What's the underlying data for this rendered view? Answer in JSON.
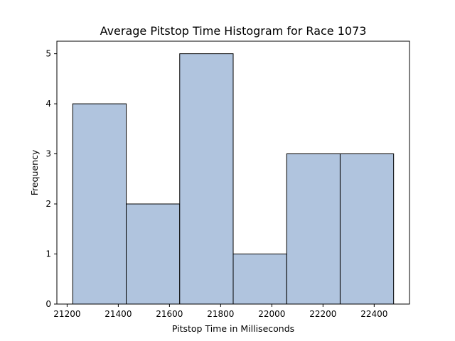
{
  "chart_data": {
    "type": "bar",
    "title": "Average Pitstop Time Histogram for Race 1073",
    "xlabel": "Pitstop Time in Milliseconds",
    "ylabel": "Frequency",
    "bins": [
      {
        "start": 21222,
        "end": 21431,
        "count": 4
      },
      {
        "start": 21431,
        "end": 21640,
        "count": 2
      },
      {
        "start": 21640,
        "end": 21849,
        "count": 5
      },
      {
        "start": 21849,
        "end": 22058,
        "count": 1
      },
      {
        "start": 22058,
        "end": 22267,
        "count": 3
      },
      {
        "start": 22267,
        "end": 22476,
        "count": 3
      }
    ],
    "xlim": [
      21160,
      22538
    ],
    "ylim": [
      0,
      5.25
    ],
    "xticks": [
      21200,
      21400,
      21600,
      21800,
      22000,
      22200,
      22400
    ],
    "yticks": [
      0,
      1,
      2,
      3,
      4,
      5
    ],
    "grid": false,
    "bar_color": "#b0c4de",
    "edge_color": "#000000"
  }
}
